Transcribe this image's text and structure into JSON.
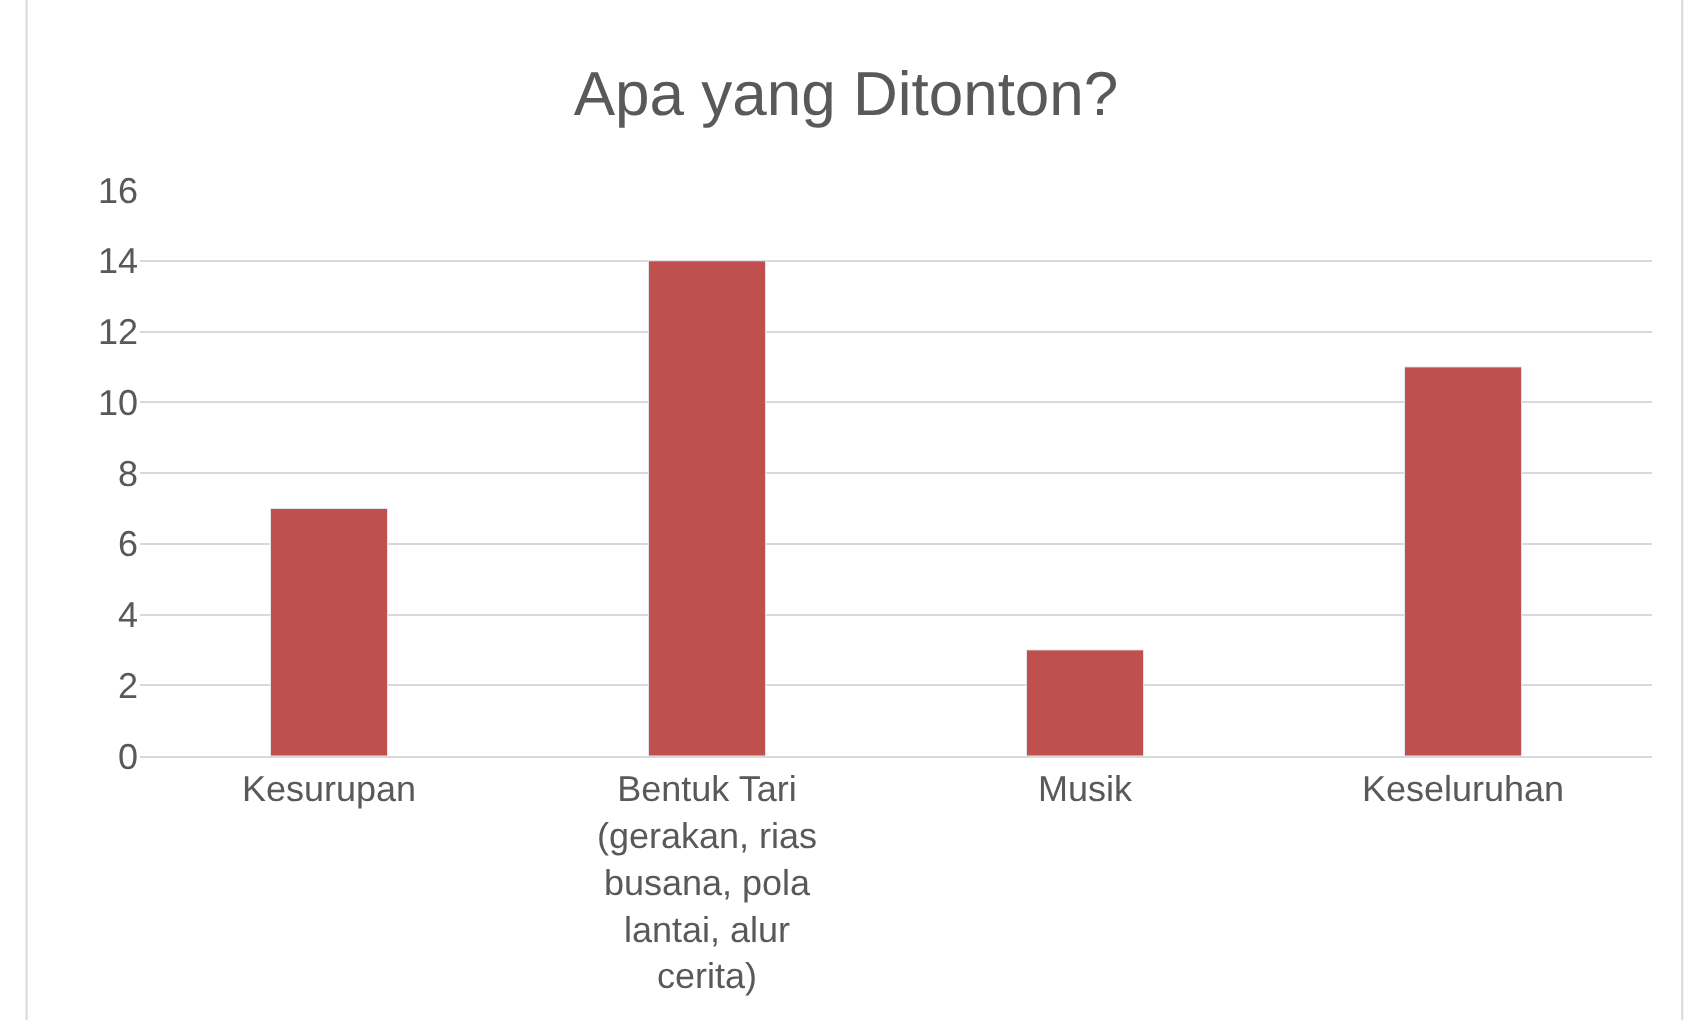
{
  "chart_data": {
    "type": "bar",
    "title": "Apa yang Ditonton?",
    "categories": [
      "Kesurupan",
      "Bentuk Tari (gerakan, rias busana, pola lantai, alur cerita)",
      "Musik",
      "Keseluruhan"
    ],
    "values": [
      7,
      14,
      3,
      11
    ],
    "color": "#c0504d",
    "ylim": [
      0,
      16
    ],
    "yticks": [
      0,
      2,
      4,
      6,
      8,
      10,
      12,
      14,
      16
    ],
    "grid": "y",
    "legend": false
  }
}
